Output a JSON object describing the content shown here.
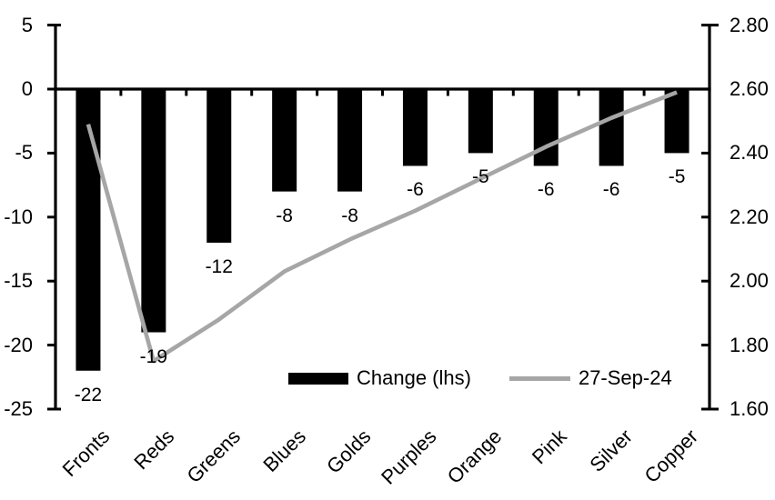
{
  "chart_data": {
    "type": "bar+line dual-axis",
    "categories": [
      "Fronts",
      "Reds",
      "Greens",
      "Blues",
      "Golds",
      "Purples",
      "Orange",
      "Pink",
      "Silver",
      "Copper"
    ],
    "series": [
      {
        "name": "Change (lhs)",
        "type": "bar",
        "axis": "left",
        "color": "#000000",
        "values": [
          -22,
          -19,
          -12,
          -8,
          -8,
          -6,
          -5,
          -6,
          -6,
          -5
        ]
      },
      {
        "name": "27-Sep-24",
        "type": "line",
        "axis": "right",
        "color": "#a6a6a6",
        "values": [
          2.49,
          1.75,
          1.88,
          2.03,
          2.13,
          2.22,
          2.32,
          2.42,
          2.51,
          2.59
        ]
      }
    ],
    "data_labels": [
      "-22",
      "-19",
      "-12",
      "-8",
      "-8",
      "-6",
      "-5",
      "-6",
      "-6",
      "-5"
    ],
    "left_axis": {
      "min": -25,
      "max": 5,
      "ticks": [
        5,
        0,
        -5,
        -10,
        -15,
        -20,
        -25
      ]
    },
    "right_axis": {
      "min": 1.6,
      "max": 2.8,
      "ticks": [
        "2.80",
        "2.60",
        "2.40",
        "2.20",
        "2.00",
        "1.80",
        "1.60"
      ]
    },
    "title": "",
    "xlabel": "",
    "ylabel": "",
    "legend_position": "inside-bottom-center",
    "grid": false
  },
  "colors": {
    "bar": "#000000",
    "line": "#a6a6a6",
    "axis": "#000000",
    "text": "#000000",
    "background": "#ffffff"
  }
}
